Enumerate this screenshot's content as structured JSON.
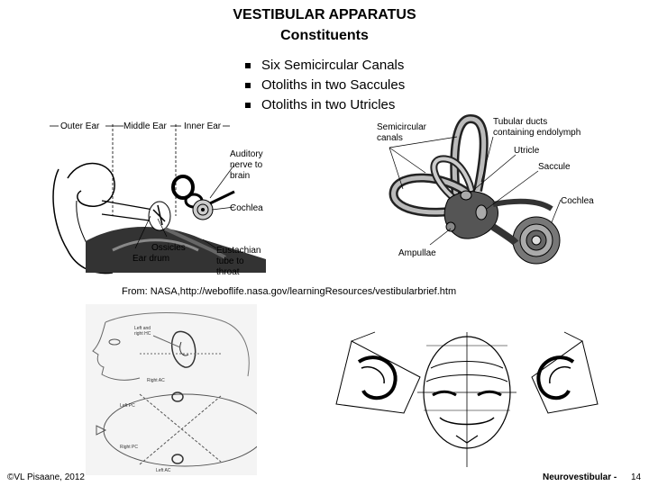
{
  "slide": {
    "title_line1": "VESTIBULAR APPARATUS",
    "title_line2": "Constituents",
    "bullets": [
      "Six Semicircular Canals",
      "Otoliths in two Saccules",
      "Otoliths in two Utricles"
    ]
  },
  "ear_diagram": {
    "labels": {
      "outer_ear": "Outer Ear",
      "middle_ear": "Middle Ear",
      "inner_ear": "Inner Ear",
      "auditory_nerve_1": "Auditory",
      "auditory_nerve_2": "nerve to",
      "auditory_nerve_3": "brain",
      "cochlea": "Cochlea",
      "ossicles": "Ossicles",
      "ear_drum": "Ear drum",
      "eustachian_1": "Eustachian",
      "eustachian_2": "tube to",
      "eustachian_3": "throat"
    }
  },
  "labyrinth_diagram": {
    "labels": {
      "semicircular_1": "Semicircular",
      "semicircular_2": "canals",
      "tubular_1": "Tubular ducts",
      "tubular_2": "containing endolymph",
      "utricle": "Utricle",
      "saccule": "Saccule",
      "cochlea": "Cochlea",
      "ampullae": "Ampullae"
    }
  },
  "source_credit": "From: NASA,http://weboflife.nasa.gov/learningResources/vestibularbrief.htm",
  "canal_plane_sketch": {
    "labels": {
      "left_right_hc_1": "Left and",
      "left_right_hc_2": "right HC",
      "right_ac": "Right AC",
      "left_pc": "Left PC",
      "right_pc": "Right PC",
      "left_ac": "Left AC"
    }
  },
  "footer": {
    "copyright": "©VL Pisaane, 2012",
    "section": "Neurovestibular -",
    "page": "14"
  }
}
